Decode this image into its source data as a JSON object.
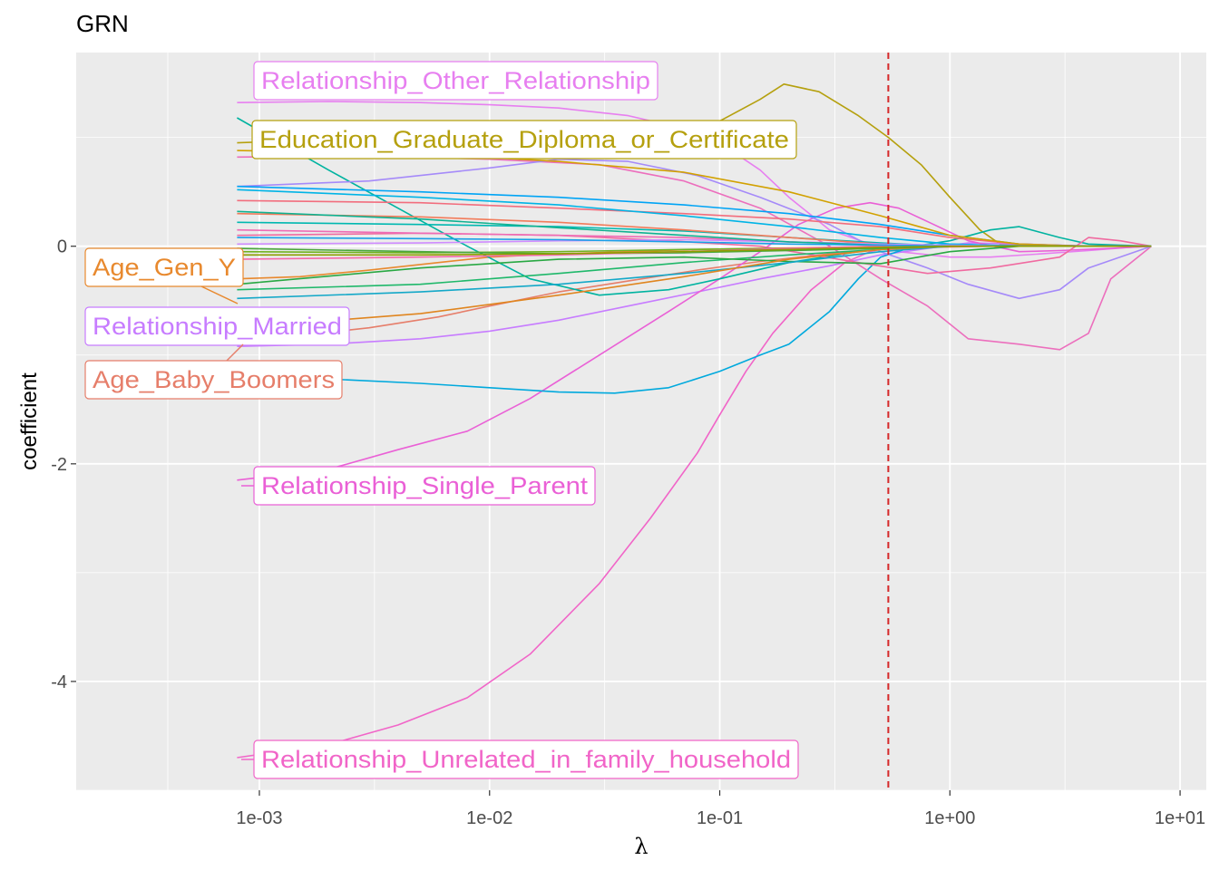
{
  "chart_data": {
    "type": "line",
    "title": "GRN",
    "xlabel": "λ",
    "ylabel": "coefficient",
    "x_scale": "log10",
    "xlim": [
      0.00016,
      13
    ],
    "ylim": [
      -5.0,
      1.78
    ],
    "x_ticks": [
      0.001,
      0.01,
      0.1,
      1,
      10
    ],
    "x_tick_labels": [
      "1e-03",
      "1e-02",
      "1e-01",
      "1e+00",
      "1e+01"
    ],
    "y_ticks": [
      -4,
      -2,
      0
    ],
    "y_tick_labels": [
      "-4",
      "-2",
      "0"
    ],
    "grid": true,
    "legend": "none",
    "reference_line": {
      "x": 0.54,
      "color": "#d62728",
      "style": "dashed"
    },
    "series": [
      {
        "name": "Relationship_Other_Relationship",
        "color": "#e77ff0",
        "x": [
          0.0008,
          0.002,
          0.005,
          0.01,
          0.02,
          0.04,
          0.07,
          0.1,
          0.15,
          0.2,
          0.3,
          0.45,
          0.6,
          1,
          1.5,
          2.5,
          4,
          6,
          7.5
        ],
        "y": [
          1.32,
          1.33,
          1.32,
          1.3,
          1.27,
          1.2,
          1.08,
          0.95,
          0.7,
          0.45,
          0.15,
          0.02,
          -0.05,
          -0.1,
          -0.1,
          -0.07,
          -0.04,
          -0.01,
          0
        ]
      },
      {
        "name": "Education_Graduate_Diploma_or_Certificate",
        "color": "#b5a00e",
        "x": [
          0.0008,
          0.002,
          0.005,
          0.01,
          0.02,
          0.05,
          0.1,
          0.15,
          0.19,
          0.27,
          0.4,
          0.54,
          0.75,
          1,
          1.35,
          1.65,
          2.5,
          4,
          7.5
        ],
        "y": [
          0.95,
          0.98,
          1.0,
          1.02,
          1.04,
          1.06,
          1.15,
          1.35,
          1.49,
          1.42,
          1.2,
          1.0,
          0.75,
          0.45,
          0.15,
          0.02,
          0,
          0,
          0
        ]
      },
      {
        "name": "Age_Gen_Y",
        "color": "#e8892e",
        "x": [
          0.0008,
          0.0015,
          0.003,
          0.006,
          0.01,
          0.02,
          0.04,
          0.08,
          0.15,
          0.3,
          0.5,
          0.8,
          1.5,
          3,
          7.5
        ],
        "y": [
          -0.3,
          -0.28,
          -0.22,
          -0.15,
          -0.1,
          -0.07,
          -0.05,
          -0.03,
          -0.02,
          -0.01,
          0,
          0,
          0,
          0,
          0
        ]
      },
      {
        "name": "Relationship_Married",
        "color": "#c77cff",
        "x": [
          0.0008,
          0.002,
          0.005,
          0.01,
          0.02,
          0.04,
          0.08,
          0.15,
          0.3,
          0.5,
          0.8,
          1.2,
          2,
          3,
          4.5,
          7.5
        ],
        "y": [
          -0.92,
          -0.9,
          -0.85,
          -0.78,
          -0.68,
          -0.55,
          -0.42,
          -0.3,
          -0.18,
          -0.08,
          -0.02,
          0.03,
          0.02,
          0.01,
          0,
          0
        ]
      },
      {
        "name": "Age_Baby_Boomers",
        "color": "#e67e6a",
        "x": [
          0.0008,
          0.0015,
          0.003,
          0.006,
          0.01,
          0.02,
          0.04,
          0.08,
          0.15,
          0.3,
          0.5,
          0.8,
          1.5,
          3,
          7.5
        ],
        "y": [
          -0.85,
          -0.82,
          -0.75,
          -0.65,
          -0.55,
          -0.42,
          -0.32,
          -0.22,
          -0.14,
          -0.07,
          -0.03,
          -0.01,
          0,
          0,
          0
        ]
      },
      {
        "name": "Relationship_Single_Parent",
        "color": "#ea60d6",
        "x": [
          0.0008,
          0.002,
          0.004,
          0.008,
          0.015,
          0.03,
          0.06,
          0.1,
          0.15,
          0.22,
          0.32,
          0.45,
          0.6,
          0.85,
          1.2,
          2,
          3,
          5,
          7.5
        ],
        "y": [
          -2.15,
          -2.05,
          -1.87,
          -1.7,
          -1.4,
          -1.0,
          -0.6,
          -0.3,
          -0.05,
          0.2,
          0.35,
          0.4,
          0.35,
          0.2,
          0.05,
          -0.05,
          -0.04,
          -0.02,
          0
        ]
      },
      {
        "name": "Relationship_Unrelated_in_family_household",
        "color": "#f165c8",
        "x": [
          0.0008,
          0.002,
          0.004,
          0.008,
          0.015,
          0.03,
          0.05,
          0.08,
          0.1,
          0.13,
          0.17,
          0.25,
          0.35,
          0.45,
          0.55,
          0.7,
          0.9,
          1.2,
          2,
          3,
          5,
          7.5
        ],
        "y": [
          -4.7,
          -4.58,
          -4.4,
          -4.15,
          -3.75,
          -3.1,
          -2.5,
          -1.9,
          -1.55,
          -1.15,
          -0.8,
          -0.4,
          -0.15,
          -0.05,
          -0.01,
          0,
          0,
          0,
          0,
          0,
          0,
          0
        ]
      },
      {
        "name": "",
        "color": "#00a9dd",
        "x": [
          0.0008,
          0.002,
          0.005,
          0.01,
          0.02,
          0.035,
          0.06,
          0.1,
          0.15,
          0.2,
          0.3,
          0.4,
          0.5,
          0.7,
          1,
          1.5,
          2.5,
          4,
          7.5
        ],
        "y": [
          -1.2,
          -1.22,
          -1.26,
          -1.3,
          -1.34,
          -1.35,
          -1.3,
          -1.15,
          -1.0,
          -0.9,
          -0.6,
          -0.3,
          -0.1,
          0,
          0.02,
          0.01,
          0,
          0,
          0
        ]
      },
      {
        "name": "",
        "color": "#00b3a0",
        "x": [
          0.0008,
          0.002,
          0.004,
          0.008,
          0.015,
          0.03,
          0.06,
          0.1,
          0.2,
          0.4,
          0.7,
          1,
          1.5,
          2,
          3,
          4,
          7.5
        ],
        "y": [
          1.18,
          0.7,
          0.35,
          0.0,
          -0.3,
          -0.45,
          -0.4,
          -0.3,
          -0.15,
          -0.05,
          0,
          0.05,
          0.15,
          0.18,
          0.08,
          0.02,
          0
        ]
      },
      {
        "name": "",
        "color": "#ec6fbd",
        "x": [
          0.0008,
          0.003,
          0.01,
          0.03,
          0.07,
          0.15,
          0.3,
          0.5,
          0.8,
          1.2,
          2,
          3,
          4,
          5,
          7.5
        ],
        "y": [
          0.82,
          0.83,
          0.8,
          0.75,
          0.6,
          0.35,
          0.0,
          -0.3,
          -0.55,
          -0.85,
          -0.9,
          -0.95,
          -0.8,
          -0.3,
          0
        ]
      },
      {
        "name": "",
        "color": "#a58af9",
        "x": [
          0.0008,
          0.003,
          0.01,
          0.02,
          0.04,
          0.08,
          0.15,
          0.3,
          0.5,
          0.8,
          1.2,
          2,
          3,
          4,
          7.5
        ],
        "y": [
          0.55,
          0.6,
          0.72,
          0.8,
          0.78,
          0.65,
          0.45,
          0.2,
          -0.05,
          -0.2,
          -0.35,
          -0.48,
          -0.4,
          -0.2,
          0
        ]
      },
      {
        "name": "",
        "color": "#f06aa0",
        "x": [
          0.0008,
          0.005,
          0.02,
          0.06,
          0.15,
          0.4,
          0.8,
          1.5,
          3,
          4,
          5.5,
          7.5
        ],
        "y": [
          0.1,
          0.12,
          0.1,
          0.05,
          0.0,
          -0.15,
          -0.25,
          -0.2,
          -0.1,
          0.08,
          0.05,
          0
        ]
      },
      {
        "name": "",
        "color": "#00a4f5",
        "x": [
          0.0008,
          0.005,
          0.02,
          0.07,
          0.2,
          0.5,
          1,
          2,
          4,
          7.5
        ],
        "y": [
          0.55,
          0.5,
          0.45,
          0.38,
          0.3,
          0.2,
          0.1,
          0.02,
          0,
          0
        ]
      },
      {
        "name": "",
        "color": "#1fb86a",
        "x": [
          0.0008,
          0.005,
          0.02,
          0.07,
          0.2,
          0.5,
          1,
          2,
          4,
          7.5
        ],
        "y": [
          -0.4,
          -0.35,
          -0.25,
          -0.15,
          -0.08,
          -0.03,
          0,
          0,
          0,
          0
        ]
      },
      {
        "name": "",
        "color": "#6fb21f",
        "x": [
          0.0008,
          0.005,
          0.02,
          0.07,
          0.2,
          0.5,
          1,
          2,
          4,
          7.5
        ],
        "y": [
          -0.05,
          -0.06,
          -0.05,
          -0.03,
          -0.02,
          -0.01,
          0,
          0,
          0,
          0
        ]
      },
      {
        "name": "",
        "color": "#29a843",
        "x": [
          0.0008,
          0.005,
          0.02,
          0.07,
          0.2,
          0.5,
          1,
          2,
          4,
          7.5
        ],
        "y": [
          -0.35,
          -0.2,
          -0.12,
          -0.1,
          -0.14,
          -0.16,
          -0.05,
          0,
          0,
          0
        ]
      },
      {
        "name": "",
        "color": "#f26d7d",
        "x": [
          0.0008,
          0.005,
          0.02,
          0.07,
          0.2,
          0.5,
          1,
          2,
          4,
          7.5
        ],
        "y": [
          0.42,
          0.4,
          0.35,
          0.3,
          0.25,
          0.18,
          0.08,
          0.02,
          0,
          0
        ]
      },
      {
        "name": "",
        "color": "#00b4e6",
        "x": [
          0.0008,
          0.005,
          0.02,
          0.07,
          0.2,
          0.5,
          1,
          2,
          4,
          7.5
        ],
        "y": [
          0.52,
          0.45,
          0.38,
          0.28,
          0.18,
          0.08,
          0.02,
          0,
          0,
          0
        ]
      },
      {
        "name": "",
        "color": "#00b8b0",
        "x": [
          0.0008,
          0.005,
          0.02,
          0.07,
          0.2,
          0.5,
          1,
          2,
          4,
          7.5
        ],
        "y": [
          0.22,
          0.2,
          0.18,
          0.14,
          0.08,
          0.03,
          0,
          0,
          0,
          0
        ]
      },
      {
        "name": "",
        "color": "#13a8c8",
        "x": [
          0.0008,
          0.005,
          0.02,
          0.07,
          0.2,
          0.5,
          1,
          2,
          4,
          7.5
        ],
        "y": [
          -0.48,
          -0.42,
          -0.35,
          -0.25,
          -0.15,
          -0.05,
          0,
          0,
          0,
          0
        ]
      },
      {
        "name": "",
        "color": "#ef6bb4",
        "x": [
          0.0008,
          0.005,
          0.02,
          0.07,
          0.2,
          0.5,
          1,
          2,
          4,
          7.5
        ],
        "y": [
          0.15,
          0.12,
          0.1,
          0.08,
          0.04,
          0.02,
          0,
          0,
          0,
          0
        ]
      },
      {
        "name": "",
        "color": "#d2a100",
        "x": [
          0.0008,
          0.005,
          0.02,
          0.07,
          0.2,
          0.5,
          1,
          2,
          4,
          7.5
        ],
        "y": [
          0.88,
          0.85,
          0.78,
          0.68,
          0.5,
          0.28,
          0.1,
          0.02,
          0,
          0
        ]
      },
      {
        "name": "",
        "color": "#e0851f",
        "x": [
          0.0008,
          0.005,
          0.02,
          0.07,
          0.2,
          0.5,
          1,
          2,
          4,
          7.5
        ],
        "y": [
          -0.75,
          -0.62,
          -0.45,
          -0.28,
          -0.12,
          -0.03,
          0,
          0,
          0,
          0
        ]
      },
      {
        "name": "",
        "color": "#f27b5a",
        "x": [
          0.0008,
          0.005,
          0.02,
          0.07,
          0.2,
          0.5,
          1,
          2,
          4,
          7.5
        ],
        "y": [
          0.3,
          0.27,
          0.22,
          0.15,
          0.08,
          0.02,
          0,
          0,
          0,
          0
        ]
      },
      {
        "name": "",
        "color": "#cf8cff",
        "x": [
          0.0008,
          0.005,
          0.02,
          0.07,
          0.2,
          0.5,
          1,
          2,
          4,
          7.5
        ],
        "y": [
          0.02,
          0.03,
          0.05,
          0.06,
          0.04,
          0.02,
          0.01,
          0,
          0,
          0
        ]
      },
      {
        "name": "",
        "color": "#4aa73c",
        "x": [
          0.0008,
          0.005,
          0.02,
          0.07,
          0.2,
          0.5,
          1,
          2,
          4,
          7.5
        ],
        "y": [
          -0.02,
          -0.05,
          -0.07,
          -0.06,
          -0.04,
          -0.02,
          0,
          0,
          0,
          0
        ]
      },
      {
        "name": "",
        "color": "#0fb291",
        "x": [
          0.0008,
          0.005,
          0.02,
          0.07,
          0.2,
          0.5,
          1,
          2,
          4,
          7.5
        ],
        "y": [
          0.32,
          0.25,
          0.17,
          0.1,
          0.04,
          0.01,
          0,
          0,
          0,
          0
        ]
      },
      {
        "name": "",
        "color": "#f468a7",
        "x": [
          0.0008,
          0.005,
          0.02,
          0.07,
          0.2,
          0.5,
          1,
          2,
          4,
          7.5
        ],
        "y": [
          -0.12,
          -0.1,
          -0.08,
          -0.05,
          -0.02,
          0,
          0,
          0,
          0,
          0
        ]
      },
      {
        "name": "",
        "color": "#1aa0e8",
        "x": [
          0.0008,
          0.005,
          0.02,
          0.07,
          0.2,
          0.5,
          1,
          2,
          4,
          7.5
        ],
        "y": [
          0.08,
          0.07,
          0.06,
          0.04,
          0.02,
          0.01,
          0,
          0,
          0,
          0
        ]
      },
      {
        "name": "",
        "color": "#8b9e00",
        "x": [
          0.0008,
          0.005,
          0.02,
          0.07,
          0.2,
          0.5,
          1,
          2,
          4,
          7.5
        ],
        "y": [
          -0.08,
          -0.08,
          -0.07,
          -0.05,
          -0.03,
          -0.01,
          0,
          0,
          0,
          0
        ]
      }
    ],
    "labels": [
      {
        "text": "Relationship_Other_Relationship",
        "series": 0,
        "color": "#e77ff0"
      },
      {
        "text": "Education_Graduate_Diploma_or_Certificate",
        "series": 1,
        "color": "#b5a00e"
      },
      {
        "text": "Age_Gen_Y",
        "series": 2,
        "color": "#e8892e"
      },
      {
        "text": "Relationship_Married",
        "series": 3,
        "color": "#c77cff"
      },
      {
        "text": "Age_Baby_Boomers",
        "series": 4,
        "color": "#e67e6a"
      },
      {
        "text": "Relationship_Single_Parent",
        "series": 5,
        "color": "#ea60d6"
      },
      {
        "text": "Relationship_Unrelated_in_family_household",
        "series": 6,
        "color": "#f165c8"
      }
    ]
  }
}
